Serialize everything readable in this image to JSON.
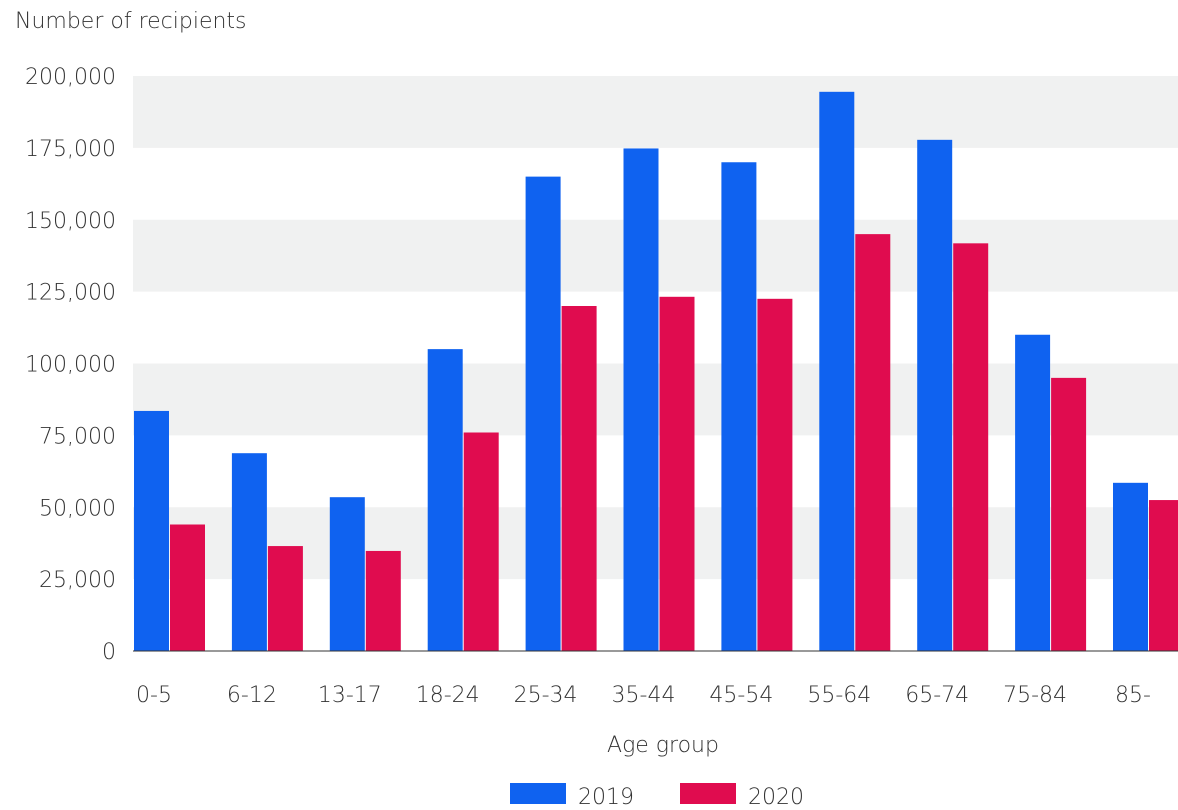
{
  "chart_data": {
    "type": "bar",
    "ylabel": "Number of recipients",
    "xlabel": "Age group",
    "categories": [
      "0-5",
      "6-12",
      "13-17",
      "18-24",
      "25-34",
      "35-44",
      "45-54",
      "55-64",
      "65-74",
      "75-84",
      "85-"
    ],
    "series": [
      {
        "name": "2019",
        "color": "#0f62f0",
        "values": [
          83500,
          68800,
          53500,
          105000,
          165000,
          174800,
          170000,
          194500,
          177800,
          110000,
          58500
        ]
      },
      {
        "name": "2020",
        "color": "#e00c4f",
        "values": [
          44000,
          36500,
          34800,
          76000,
          120000,
          123200,
          122500,
          145000,
          141800,
          95000,
          52500
        ]
      }
    ],
    "ylim": [
      0,
      200000
    ],
    "yticks": [
      0,
      25000,
      50000,
      75000,
      100000,
      125000,
      150000,
      175000,
      200000
    ],
    "ytick_labels": [
      "0",
      "25,000",
      "50,000",
      "75,000",
      "100,000",
      "125,000",
      "150,000",
      "175,000",
      "200,000"
    ],
    "grid": "alternating horizontal bands",
    "legend_position": "bottom-center"
  }
}
